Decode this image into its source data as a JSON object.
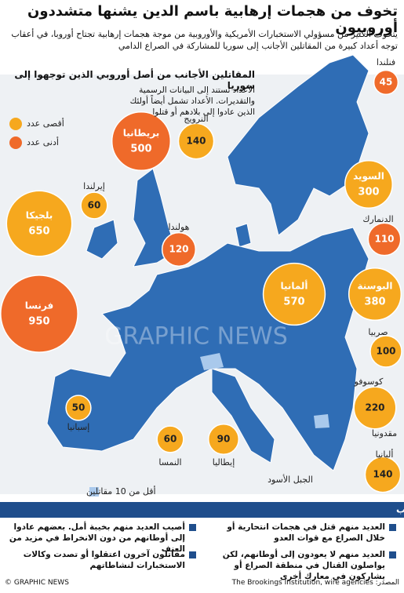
{
  "header": {
    "title": "تخوف من هجمات إرهابية باسم الدين يشنها متشددون أوروبيون",
    "intro": "يتخوف الكثير من مسؤولي الاستخبارات الأمريكية والأوروبية من موجة هجمات إرهابية تجتاح أوروبا، في أعقاب توجه أعداد كبيرة من المقاتلين الأجانب إلى سوريا للمشاركة في الصراع الدامي"
  },
  "map": {
    "subtitle": "المقاتلين الأجانب من أصل أوروبي الذين توجهوا إلى سوريا",
    "note": "الأعداد تستند إلى البيانات الرسمية والتقديرات. الأعداد تشمل أيضاً أولئك الذين عادوا إلى بلادهم أو قتلوا",
    "legend": [
      {
        "label": "أقصى عدد",
        "color": "#f6a81e"
      },
      {
        "label": "أدنى عدد",
        "color": "#ef6a2a"
      },
      {
        "label": "أقل من 10 مقاتلين",
        "color": "#a9c9ec"
      }
    ],
    "countries": [
      {
        "name": "فنلندا",
        "value": 45,
        "color": "#ef6a2a"
      },
      {
        "name": "النرويج",
        "value": 140,
        "color": "#f6a81e"
      },
      {
        "name": "بريطانيا",
        "value": 500,
        "color": "#ef6a2a"
      },
      {
        "name": "السويد",
        "value": 300,
        "color": "#f6a81e"
      },
      {
        "name": "إيرلندا",
        "value": 60,
        "color": "#f6a81e"
      },
      {
        "name": "بلجيكا",
        "value": 650,
        "color": "#f6a81e"
      },
      {
        "name": "الدنمارك",
        "value": 110,
        "color": "#ef6a2a"
      },
      {
        "name": "هولندا",
        "value": 120,
        "color": "#ef6a2a"
      },
      {
        "name": "ألمانيا",
        "value": 570,
        "color": "#f6a81e"
      },
      {
        "name": "فرنسا",
        "value": 950,
        "color": "#ef6a2a"
      },
      {
        "name": "البوسنة",
        "value": 380,
        "color": "#f6a81e"
      },
      {
        "name": "صربيا",
        "value": 100,
        "color": "#f6a81e"
      },
      {
        "name": "كوسوفو",
        "value": 220,
        "color": "#f6a81e"
      },
      {
        "name": "إسبانيا",
        "value": 50,
        "color": "#f6a81e"
      },
      {
        "name": "النمسا",
        "value": 60,
        "color": "#f6a81e"
      },
      {
        "name": "إيطاليا",
        "value": 90,
        "color": "#f6a81e"
      },
      {
        "name": "ألبانيا",
        "value": 140,
        "color": "#f6a81e"
      }
    ],
    "other_labels": [
      "مقدونيا",
      "الجبل الأسود"
    ],
    "watermark": "GRAPHIC NEWS"
  },
  "factors": {
    "title": "عوامل تقلص التهديد من المقاتلين الأجانب",
    "items": [
      "العديد منهم قتل في هجمات انتحارية أو خلال الصراع مع قوات العدو",
      "أصيب العديد منهم بخيبة أمل. بعضهم عادوا إلى أوطانهم من دون الانخراط في مزيد من العنف",
      "العديد منهم لا يعودون إلى أوطانهم، لكن يواصلون القتال في منطقة الصراع أو يشاركون في معارك أخرى",
      "مقاتلون آخرون اعتقلوا أو تصدت وكالات الاستخبارات لنشاطاتهم"
    ]
  },
  "footer": {
    "source": "المصدر: The Brookings Institution, wire agencies",
    "credit": "© GRAPHIC NEWS"
  }
}
